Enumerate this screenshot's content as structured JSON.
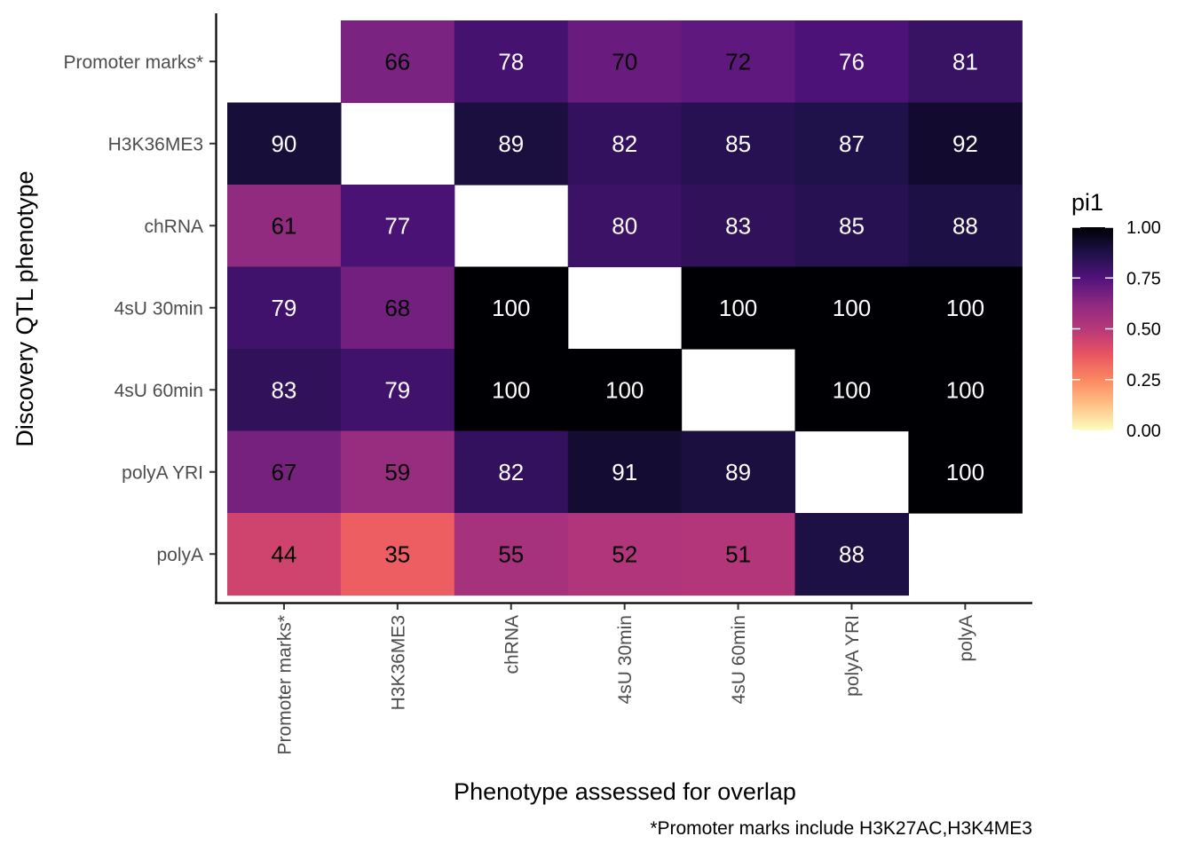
{
  "chart_data": {
    "type": "heatmap",
    "xlabel": "Phenotype assessed for overlap",
    "ylabel": "Discovery QTL phenotype",
    "caption": "*Promoter marks include H3K27AC,H3K4ME3",
    "x_categories": [
      "Promoter marks*",
      "H3K36ME3",
      "chRNA",
      "4sU 30min",
      "4sU 60min",
      "polyA YRI",
      "polyA"
    ],
    "y_categories": [
      "Promoter marks*",
      "H3K36ME3",
      "chRNA",
      "4sU 30min",
      "4sU 60min",
      "polyA YRI",
      "polyA"
    ],
    "values": [
      [
        null,
        66,
        78,
        70,
        72,
        76,
        81
      ],
      [
        90,
        null,
        89,
        82,
        85,
        87,
        92
      ],
      [
        61,
        77,
        null,
        80,
        83,
        85,
        88
      ],
      [
        79,
        68,
        100,
        null,
        100,
        100,
        100
      ],
      [
        83,
        79,
        100,
        100,
        null,
        100,
        100
      ],
      [
        67,
        59,
        82,
        91,
        89,
        null,
        100
      ],
      [
        44,
        35,
        55,
        52,
        51,
        88,
        null
      ]
    ],
    "legend": {
      "title": "pi1",
      "range": [
        0,
        1
      ],
      "ticks": [
        "0.00",
        "0.25",
        "0.50",
        "0.75",
        "1.00"
      ],
      "colormap": "magma (reversed)"
    }
  }
}
